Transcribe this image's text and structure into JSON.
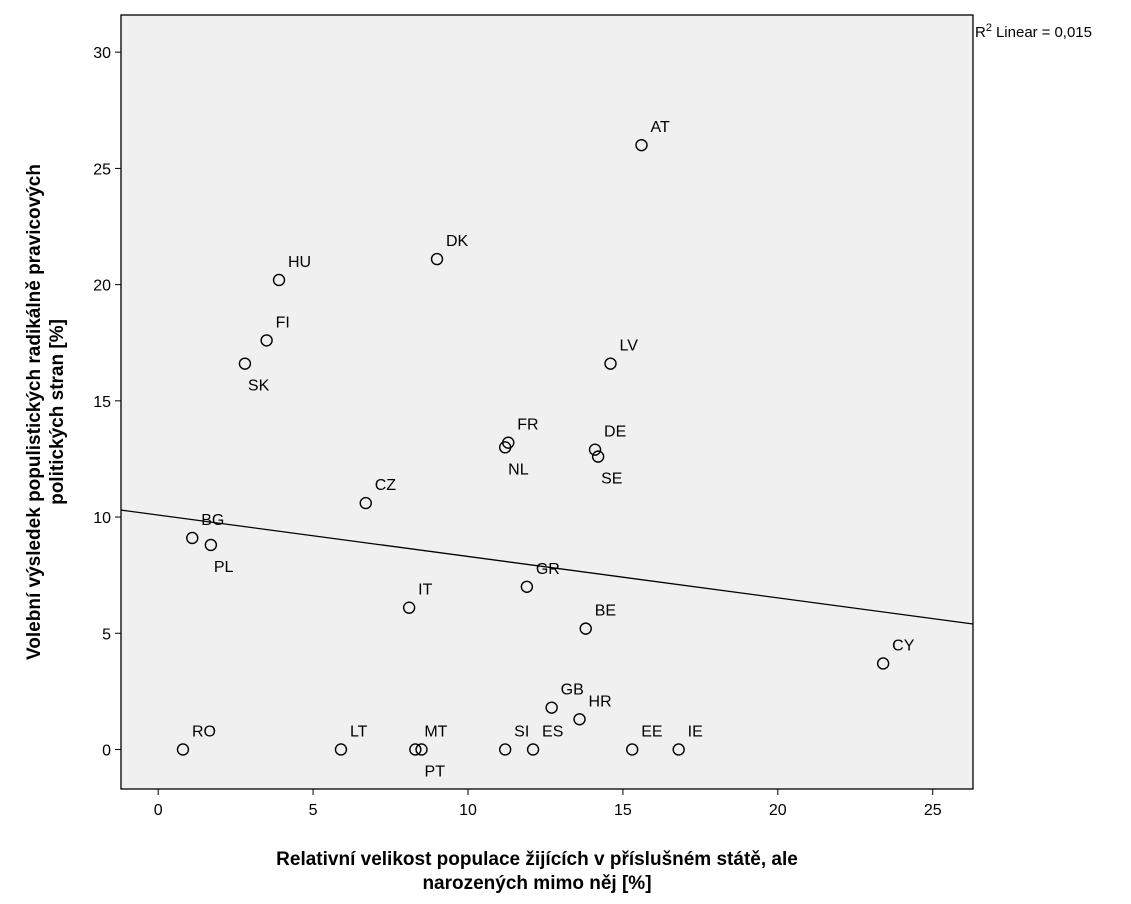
{
  "chart_data": {
    "type": "scatter",
    "xlabel_lines": [
      "Relativní velikost populace žijících v příslušném státě, ale",
      "narozených mimo něj [%]"
    ],
    "ylabel_lines": [
      "Volební výsledek populistických radikálně pravicových",
      "politických stran [%]"
    ],
    "xlim": [
      -1.2,
      26.3
    ],
    "ylim": [
      -1.7,
      31.6
    ],
    "x_ticks": [
      0,
      5,
      10,
      15,
      20,
      25
    ],
    "y_ticks": [
      0,
      5,
      10,
      15,
      20,
      25,
      30
    ],
    "grid": false,
    "background": "#f0f0f0",
    "marker_color": "#000000",
    "fit_line": {
      "label": "Linear",
      "r2_prefix": "R",
      "r2_sup": "2",
      "r2_value_text": "0,015",
      "x_start": -1.2,
      "y_start": 10.3,
      "x_end": 26.3,
      "y_end": 5.4
    },
    "points": [
      {
        "label": "AT",
        "x": 15.6,
        "y": 26.0,
        "pos": "ne"
      },
      {
        "label": "DK",
        "x": 9.0,
        "y": 21.1,
        "pos": "ne"
      },
      {
        "label": "HU",
        "x": 3.9,
        "y": 20.2,
        "pos": "ne"
      },
      {
        "label": "FI",
        "x": 3.5,
        "y": 17.6,
        "pos": "ne"
      },
      {
        "label": "SK",
        "x": 2.8,
        "y": 16.6,
        "pos": "se"
      },
      {
        "label": "LV",
        "x": 14.6,
        "y": 16.6,
        "pos": "ne"
      },
      {
        "label": "FR",
        "x": 11.3,
        "y": 13.2,
        "pos": "ne"
      },
      {
        "label": "NL",
        "x": 11.2,
        "y": 13.0,
        "pos": "se"
      },
      {
        "label": "DE",
        "x": 14.1,
        "y": 12.9,
        "pos": "ne"
      },
      {
        "label": "SE",
        "x": 14.2,
        "y": 12.6,
        "pos": "se"
      },
      {
        "label": "CZ",
        "x": 6.7,
        "y": 10.6,
        "pos": "ne"
      },
      {
        "label": "BG",
        "x": 1.1,
        "y": 9.1,
        "pos": "ne"
      },
      {
        "label": "PL",
        "x": 1.7,
        "y": 8.8,
        "pos": "se"
      },
      {
        "label": "GR",
        "x": 11.9,
        "y": 7.0,
        "pos": "ne"
      },
      {
        "label": "IT",
        "x": 8.1,
        "y": 6.1,
        "pos": "ne"
      },
      {
        "label": "BE",
        "x": 13.8,
        "y": 5.2,
        "pos": "ne"
      },
      {
        "label": "CY",
        "x": 23.4,
        "y": 3.7,
        "pos": "ne"
      },
      {
        "label": "GB",
        "x": 12.7,
        "y": 1.8,
        "pos": "ne"
      },
      {
        "label": "HR",
        "x": 13.6,
        "y": 1.3,
        "pos": "ne"
      },
      {
        "label": "RO",
        "x": 0.8,
        "y": 0.0,
        "pos": "ne"
      },
      {
        "label": "LT",
        "x": 5.9,
        "y": 0.0,
        "pos": "ne"
      },
      {
        "label": "MT",
        "x": 8.3,
        "y": 0.0,
        "pos": "ne"
      },
      {
        "label": "PT",
        "x": 8.5,
        "y": 0.0,
        "pos": "se"
      },
      {
        "label": "SI",
        "x": 11.2,
        "y": 0.0,
        "pos": "ne"
      },
      {
        "label": "ES",
        "x": 12.1,
        "y": 0.0,
        "pos": "ne"
      },
      {
        "label": "EE",
        "x": 15.3,
        "y": 0.0,
        "pos": "ne"
      },
      {
        "label": "IE",
        "x": 16.8,
        "y": 0.0,
        "pos": "ne"
      }
    ]
  }
}
